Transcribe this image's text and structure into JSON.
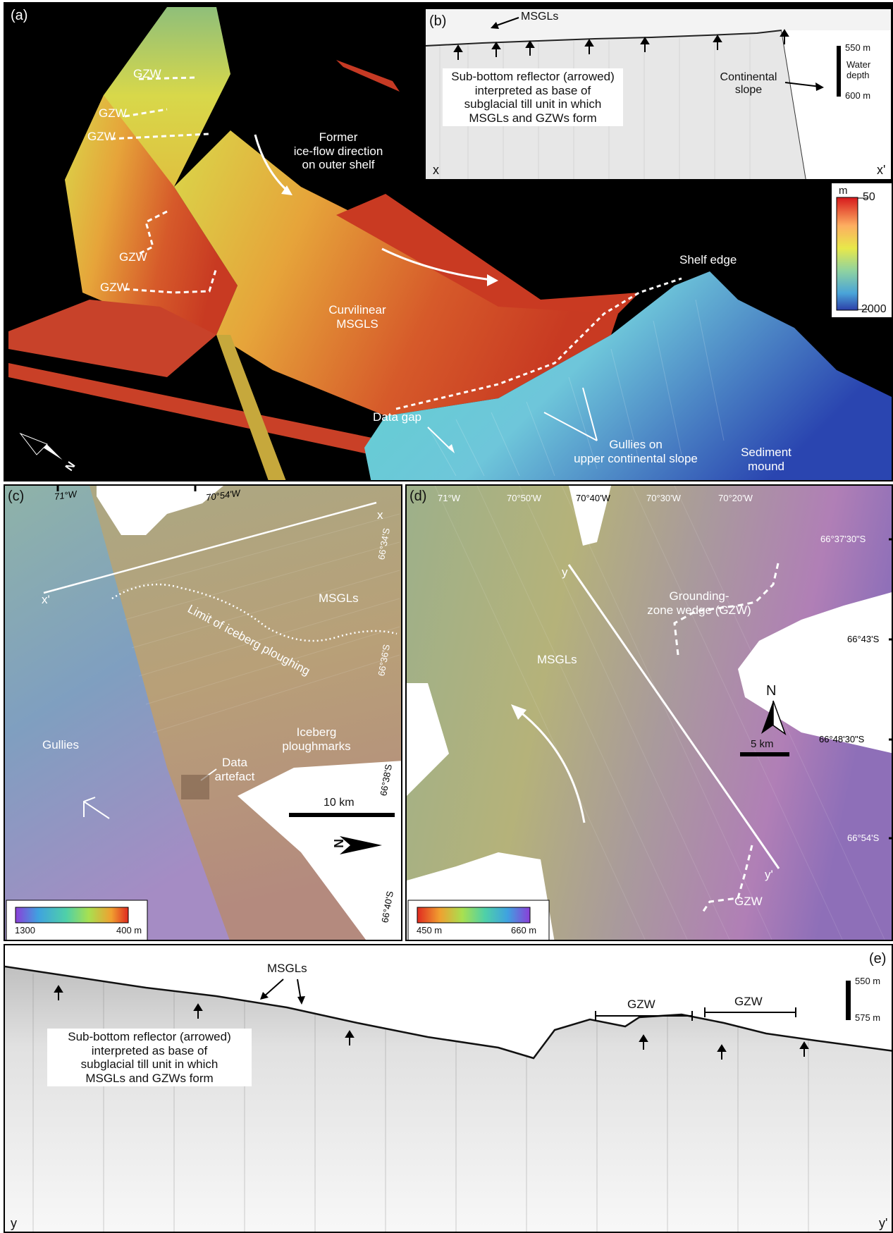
{
  "panel_a": {
    "label": "(a)",
    "gzw_labels": [
      "GZW",
      "GZW",
      "GZW",
      "GZW",
      "GZW"
    ],
    "flow_text": "Former ice-flow direction on outer shelf",
    "flow_lines": [
      "Former",
      "ice-flow direction",
      "on outer shelf"
    ],
    "curvilinear": [
      "Curvilinear",
      "MSGLS"
    ],
    "shelf_edge": "Shelf edge",
    "data_gap": "Data gap",
    "gullies": [
      "Gullies on",
      "upper continental slope"
    ],
    "sediment_mound": [
      "Sediment",
      "mound"
    ],
    "north": "N",
    "colorbar": {
      "unit": "m",
      "top": "50",
      "bottom": "2000"
    }
  },
  "panel_b": {
    "label": "(b)",
    "msgls": "MSGLs",
    "note": [
      "Sub-bottom reflector (arrowed)",
      "interpreted as base of",
      "subglacial till unit in which",
      "MSGLs and GZWs form"
    ],
    "continental_slope": [
      "Continental",
      "slope"
    ],
    "scale_top": "550 m",
    "scale_mid": [
      "Water",
      "depth"
    ],
    "scale_bottom": "600 m",
    "x_start": "x",
    "x_end": "x'"
  },
  "panel_c": {
    "label": "(c)",
    "lon_ticks": [
      "71°W",
      "70°54'W"
    ],
    "lat_ticks": [
      "66°34'S",
      "66°36'S",
      "66°38'S",
      "66°40'S"
    ],
    "x_label": "x",
    "x_prime": "x'",
    "msgls": "MSGLs",
    "iceberg_limit": "Limit of iceberg ploughing",
    "iceberg_marks": [
      "Iceberg",
      "ploughmarks"
    ],
    "gullies": "Gullies",
    "data_artefact": [
      "Data",
      "artefact"
    ],
    "scale": "10 km",
    "north": "N",
    "colorbar": {
      "left": "1300",
      "right": "400 m"
    }
  },
  "panel_d": {
    "label": "(d)",
    "lon_ticks": [
      "71°W",
      "70°50'W",
      "70°40'W",
      "70°30'W",
      "70°20'W"
    ],
    "lat_ticks": [
      "66°37'30\"S",
      "66°43'S",
      "66°48'30\"S",
      "66°54'S"
    ],
    "y_label": "y",
    "y_prime": "y'",
    "gzw_title": [
      "Grounding-",
      "zone wedge (GZW)"
    ],
    "msgls": "MSGLs",
    "gzw": "GZW",
    "north": "N",
    "scale": "5 km",
    "colorbar": {
      "left": "450 m",
      "right": "660 m"
    }
  },
  "panel_e": {
    "label": "(e)",
    "msgls": "MSGLs",
    "gzw1": "GZW",
    "gzw2": "GZW",
    "note": [
      "Sub-bottom reflector (arrowed)",
      "interpreted as base of",
      "subglacial till unit in which",
      "MSGLs and GZWs form"
    ],
    "scale_top": "550 m",
    "scale_bottom": "575 m",
    "y_start": "y",
    "y_end": "y'"
  }
}
